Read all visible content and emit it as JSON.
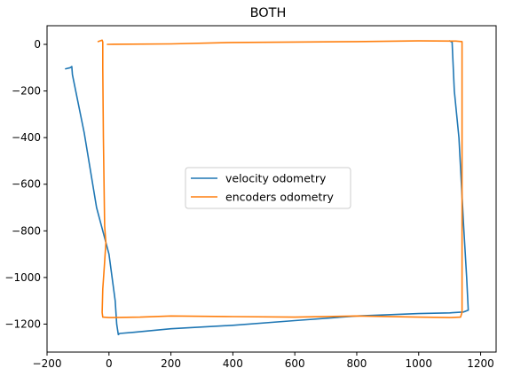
{
  "chart_data": {
    "type": "line",
    "title": "BOTH",
    "xlabel": "",
    "ylabel": "",
    "xlim": [
      -200,
      1250
    ],
    "ylim": [
      -1320,
      80
    ],
    "xticks": [
      -200,
      0,
      200,
      400,
      600,
      800,
      1000,
      1200
    ],
    "yticks": [
      0,
      -200,
      -400,
      -600,
      -800,
      -1000,
      -1200
    ],
    "grid": false,
    "legend_position": "center",
    "series": [
      {
        "name": "velocity odometry",
        "color": "#1f77b4",
        "points": [
          [
            -140,
            -105
          ],
          [
            -125,
            -100
          ],
          [
            -120,
            -95
          ],
          [
            -118,
            -130
          ],
          [
            -80,
            -380
          ],
          [
            -40,
            -700
          ],
          [
            0,
            -900
          ],
          [
            20,
            -1100
          ],
          [
            25,
            -1200
          ],
          [
            30,
            -1245
          ],
          [
            35,
            -1240
          ],
          [
            80,
            -1235
          ],
          [
            200,
            -1220
          ],
          [
            400,
            -1205
          ],
          [
            600,
            -1185
          ],
          [
            800,
            -1165
          ],
          [
            1000,
            -1155
          ],
          [
            1100,
            -1152
          ],
          [
            1145,
            -1148
          ],
          [
            1160,
            -1140
          ],
          [
            1155,
            -1000
          ],
          [
            1145,
            -780
          ],
          [
            1130,
            -400
          ],
          [
            1115,
            -200
          ],
          [
            1110,
            -50
          ],
          [
            1108,
            10
          ],
          [
            1100,
            15
          ]
        ]
      },
      {
        "name": "encoders odometry",
        "color": "#ff7f0e",
        "points": [
          [
            -35,
            12
          ],
          [
            -22,
            18
          ],
          [
            -20,
            10
          ],
          [
            -20,
            -100
          ],
          [
            -18,
            -400
          ],
          [
            -15,
            -700
          ],
          [
            -14,
            -780
          ],
          [
            -10,
            -850
          ],
          [
            -15,
            -950
          ],
          [
            -20,
            -1050
          ],
          [
            -22,
            -1150
          ],
          [
            -20,
            -1170
          ],
          [
            0,
            -1172
          ],
          [
            100,
            -1170
          ],
          [
            200,
            -1165
          ],
          [
            400,
            -1168
          ],
          [
            600,
            -1170
          ],
          [
            800,
            -1165
          ],
          [
            1000,
            -1170
          ],
          [
            1100,
            -1172
          ],
          [
            1135,
            -1170
          ],
          [
            1140,
            -1150
          ],
          [
            1140,
            -800
          ],
          [
            1140,
            -400
          ],
          [
            1140,
            0
          ],
          [
            1140,
            12
          ],
          [
            1120,
            14
          ],
          [
            1000,
            15
          ],
          [
            800,
            12
          ],
          [
            600,
            10
          ],
          [
            400,
            8
          ],
          [
            200,
            2
          ],
          [
            0,
            0
          ],
          [
            -5,
            0
          ]
        ]
      }
    ]
  }
}
